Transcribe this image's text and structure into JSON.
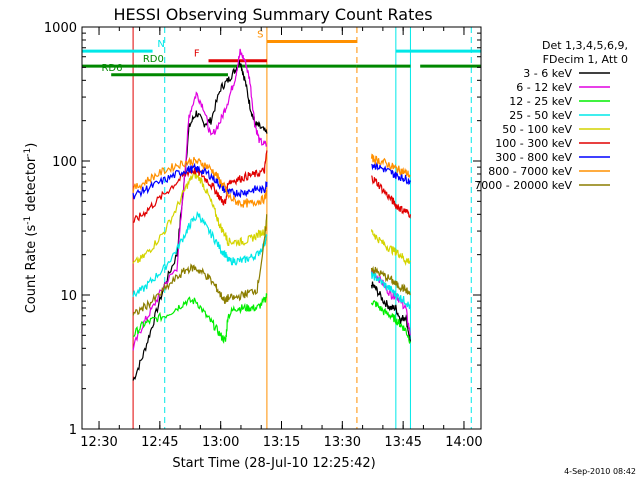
{
  "chart_data": {
    "type": "line",
    "title": "HESSI Observing Summary Count Rates",
    "xlabel": "Start Time (28-Jul-10 12:25:42)",
    "ylabel_main": "Count Rate (s",
    "ylabel_sup1": "-1",
    "ylabel_mid": " detector",
    "ylabel_sup2": "-1",
    "ylabel_end": ")",
    "yscale": "log",
    "ylim": [
      1,
      1000
    ],
    "xlim": [
      12.43,
      14.07
    ],
    "xticks": [
      {
        "value": 12.5,
        "label": "12:30"
      },
      {
        "value": 12.75,
        "label": "12:45"
      },
      {
        "value": 13.0,
        "label": "13:00"
      },
      {
        "value": 13.25,
        "label": "13:15"
      },
      {
        "value": 13.5,
        "label": "13:30"
      },
      {
        "value": 13.75,
        "label": "13:45"
      },
      {
        "value": 14.0,
        "label": "14:00"
      }
    ],
    "yticks": [
      {
        "value": 1,
        "label": "1"
      },
      {
        "value": 10,
        "label": "10"
      },
      {
        "value": 100,
        "label": "100"
      },
      {
        "value": 1000,
        "label": "1000"
      }
    ],
    "legend_header": [
      "Det 1,3,4,5,6,9,",
      "FDecim 1, Att 0"
    ],
    "series": [
      {
        "name": "3 - 6 keV",
        "color": "#000000",
        "segments": [
          {
            "x": [
              12.64,
              12.68,
              12.72,
              12.77,
              12.82,
              12.85,
              12.87,
              12.9,
              12.93,
              12.96,
              13.0,
              13.03,
              13.06,
              13.08,
              13.1,
              13.12,
              13.14,
              13.16,
              13.19
            ],
            "y": [
              2.3,
              3.5,
              6,
              12,
              20,
              70,
              180,
              230,
              190,
              200,
              350,
              400,
              480,
              560,
              400,
              260,
              190,
              180,
              160
            ]
          },
          {
            "x": [
              13.62,
              13.64,
              13.67,
              13.7,
              13.72,
              13.74,
              13.76,
              13.78
            ],
            "y": [
              12,
              11,
              9,
              8,
              8,
              6.5,
              7,
              4.5
            ]
          }
        ]
      },
      {
        "name": "6 - 12 keV",
        "color": "#e000e0",
        "segments": [
          {
            "x": [
              12.64,
              12.68,
              12.72,
              12.77,
              12.82,
              12.85,
              12.87,
              12.9,
              12.93,
              12.96,
              13.0,
              13.03,
              13.06,
              13.08,
              13.1,
              13.12,
              13.14,
              13.16,
              13.19
            ],
            "y": [
              4,
              6,
              8,
              12,
              16,
              70,
              220,
              320,
              250,
              150,
              200,
              280,
              420,
              650,
              560,
              400,
              190,
              140,
              130
            ]
          },
          {
            "x": [
              13.62,
              13.64,
              13.67,
              13.7,
              13.72,
              13.74,
              13.76,
              13.78
            ],
            "y": [
              15,
              14,
              12,
              10,
              10,
              9,
              8,
              5
            ]
          }
        ]
      },
      {
        "name": "12 - 25 keV",
        "color": "#00ee00",
        "segments": [
          {
            "x": [
              12.64,
              12.68,
              12.72,
              12.77,
              12.82,
              12.86,
              12.9,
              12.94,
              12.97,
              13.0,
              13.02,
              13.03,
              13.06,
              13.09,
              13.12,
              13.15,
              13.18,
              13.19
            ],
            "y": [
              5,
              6,
              6.5,
              7,
              8,
              9,
              9,
              7,
              6,
              5,
              4.5,
              7,
              8,
              8,
              8,
              8,
              9,
              10
            ]
          },
          {
            "x": [
              13.62,
              13.64,
              13.67,
              13.7,
              13.72,
              13.74,
              13.76,
              13.78
            ],
            "y": [
              9,
              8.5,
              7.5,
              7,
              6.5,
              6,
              5.5,
              4.5
            ]
          }
        ]
      },
      {
        "name": "25 - 50 keV",
        "color": "#00e8e8",
        "segments": [
          {
            "x": [
              12.64,
              12.68,
              12.72,
              12.77,
              12.82,
              12.86,
              12.88,
              12.91,
              12.94,
              12.97,
              13.0,
              13.02,
              13.03,
              13.06,
              13.09,
              13.12,
              13.15,
              13.18,
              13.19
            ],
            "y": [
              10,
              11,
              13,
              16,
              22,
              30,
              35,
              40,
              32,
              27,
              22,
              20,
              18,
              18,
              18,
              19,
              20,
              24,
              28
            ]
          },
          {
            "x": [
              13.62,
              13.64,
              13.67,
              13.7,
              13.72,
              13.74,
              13.76,
              13.78
            ],
            "y": [
              14,
              13.5,
              12,
              11,
              10,
              9.5,
              9,
              8
            ]
          }
        ]
      },
      {
        "name": "50 - 100 keV",
        "color": "#d4d400",
        "segments": [
          {
            "x": [
              12.64,
              12.68,
              12.72,
              12.77,
              12.82,
              12.86,
              12.89,
              12.92,
              12.95,
              12.98,
              13.0,
              13.02,
              13.03,
              13.06,
              13.09,
              13.12,
              13.15,
              13.18,
              13.19
            ],
            "y": [
              17,
              19,
              23,
              30,
              45,
              65,
              80,
              72,
              55,
              40,
              32,
              28,
              25,
              25,
              25,
              26,
              28,
              30,
              35
            ]
          },
          {
            "x": [
              13.62,
              13.64,
              13.67,
              13.7,
              13.72,
              13.74,
              13.76,
              13.78
            ],
            "y": [
              30,
              27,
              24,
              22,
              21,
              20,
              18,
              18
            ]
          }
        ]
      },
      {
        "name": "100 - 300 keV",
        "color": "#e00000",
        "segments": [
          {
            "x": [
              12.64,
              12.68,
              12.72,
              12.77,
              12.82,
              12.86,
              12.89,
              12.92,
              12.95,
              12.98,
              13.0,
              13.02,
              13.03,
              13.06,
              13.09,
              13.12,
              13.15,
              13.18,
              13.19
            ],
            "y": [
              35,
              40,
              47,
              57,
              70,
              82,
              85,
              80,
              70,
              60,
              52,
              48,
              70,
              72,
              75,
              78,
              80,
              85,
              120
            ]
          },
          {
            "x": [
              13.62,
              13.64,
              13.67,
              13.7,
              13.72,
              13.74,
              13.76,
              13.78
            ],
            "y": [
              75,
              70,
              60,
              52,
              47,
              44,
              42,
              40
            ]
          }
        ]
      },
      {
        "name": "300 - 800 keV",
        "color": "#0000ff",
        "segments": [
          {
            "x": [
              12.64,
              12.68,
              12.72,
              12.77,
              12.82,
              12.86,
              12.89,
              12.92,
              12.95,
              12.98,
              13.0,
              13.02,
              13.03,
              13.06,
              13.09,
              13.12,
              13.15,
              13.18,
              13.19
            ],
            "y": [
              55,
              60,
              65,
              72,
              80,
              86,
              88,
              85,
              80,
              72,
              65,
              60,
              58,
              58,
              58,
              60,
              62,
              60,
              70
            ]
          },
          {
            "x": [
              13.62,
              13.64,
              13.67,
              13.7,
              13.72,
              13.74,
              13.76,
              13.78
            ],
            "y": [
              95,
              92,
              87,
              82,
              78,
              76,
              74,
              70
            ]
          }
        ]
      },
      {
        "name": "800 - 7000 keV",
        "color": "#ff9000",
        "segments": [
          {
            "x": [
              12.64,
              12.68,
              12.72,
              12.77,
              12.82,
              12.86,
              12.89,
              12.92,
              12.95,
              12.98,
              13.0,
              13.02,
              13.03,
              13.06,
              13.09,
              13.12,
              13.15,
              13.18,
              13.19
            ],
            "y": [
              62,
              68,
              76,
              85,
              93,
              98,
              100,
              97,
              90,
              80,
              70,
              62,
              55,
              50,
              48,
              48,
              50,
              52,
              60
            ]
          },
          {
            "x": [
              13.62,
              13.64,
              13.67,
              13.7,
              13.72,
              13.74,
              13.76,
              13.78
            ],
            "y": [
              105,
              102,
              98,
              92,
              88,
              85,
              82,
              78
            ]
          }
        ]
      },
      {
        "name": "7000 - 20000 keV",
        "color": "#8b7d00",
        "segments": [
          {
            "x": [
              12.64,
              12.68,
              12.72,
              12.77,
              12.82,
              12.86,
              12.89,
              12.92,
              12.95,
              12.98,
              13.0,
              13.02,
              13.03,
              13.06,
              13.09,
              13.12,
              13.15,
              13.18,
              13.19
            ],
            "y": [
              7,
              8,
              9,
              11,
              13.5,
              15.5,
              16,
              15,
              13.5,
              11.5,
              10,
              9,
              9.5,
              9.5,
              10,
              10.5,
              11,
              25,
              40
            ]
          },
          {
            "x": [
              13.62,
              13.64,
              13.67,
              13.7,
              13.72,
              13.74,
              13.76,
              13.78
            ],
            "y": [
              16,
              15,
              14,
              13,
              12,
              11.5,
              11,
              10
            ]
          }
        ]
      }
    ],
    "vlines": [
      {
        "x": 12.43,
        "color": "#00e8e8",
        "dash": false
      },
      {
        "x": 12.77,
        "color": "#00e8e8",
        "dash": true
      },
      {
        "x": 12.64,
        "color": "#e00000",
        "dash": false
      },
      {
        "x": 13.19,
        "color": "#ff9000",
        "dash": false
      },
      {
        "x": 13.56,
        "color": "#ff9000",
        "dash": true
      },
      {
        "x": 13.72,
        "color": "#00e8e8",
        "dash": false
      },
      {
        "x": 13.78,
        "color": "#00e8e8",
        "dash": false
      },
      {
        "x": 14.03,
        "color": "#00e8e8",
        "dash": true
      }
    ],
    "flag_bars": [
      {
        "label": "N",
        "color": "#00e8e8",
        "y": 660,
        "segments": [
          [
            12.43,
            12.72
          ],
          [
            13.72,
            14.07
          ]
        ],
        "label_x": 12.74
      },
      {
        "label": "F",
        "color": "#e00000",
        "y": 560,
        "segments": [
          [
            12.95,
            13.19
          ]
        ],
        "label_x": 12.89
      },
      {
        "label": "S",
        "color": "#ff9000",
        "y": 780,
        "segments": [
          [
            13.19,
            13.56
          ]
        ],
        "label_x": 13.15
      },
      {
        "label": "RD0",
        "color": "#008800",
        "y": 510,
        "segments": [
          [
            12.43,
            12.66
          ],
          [
            12.66,
            13.56
          ],
          [
            13.56,
            13.78
          ],
          [
            13.82,
            14.07
          ]
        ],
        "label_x": 12.68
      },
      {
        "label": "RD6",
        "color": "#008800",
        "y": 440,
        "segments": [
          [
            12.55,
            13.03
          ]
        ],
        "label_x": 12.51
      }
    ],
    "footer_timestamp": "4-Sep-2010 08:42",
    "grid": false,
    "legend_placement": "right"
  }
}
